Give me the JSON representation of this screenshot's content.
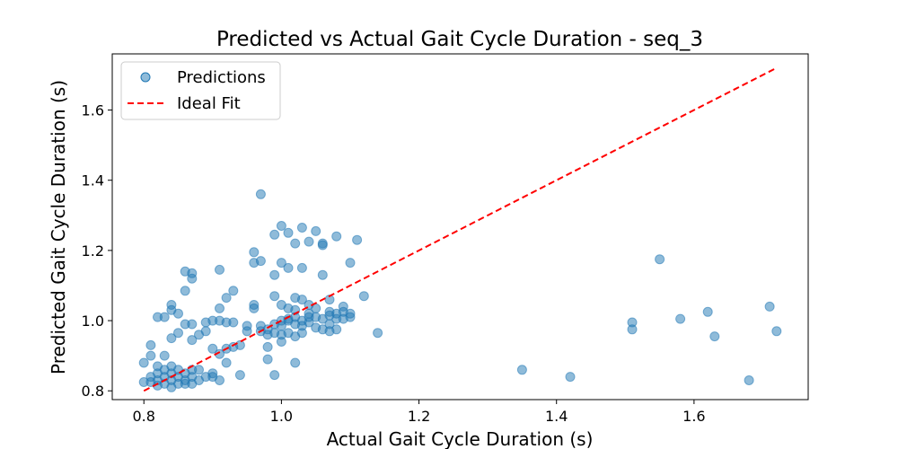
{
  "chart_data": {
    "type": "scatter",
    "title": "Predicted vs Actual Gait Cycle Duration - seq_3",
    "xlabel": "Actual Gait Cycle Duration (s)",
    "ylabel": "Predicted Gait Cycle Duration (s)",
    "xlim": [
      0.754,
      1.766
    ],
    "ylim": [
      0.775,
      1.76
    ],
    "xticks": [
      "0.8",
      "1.0",
      "1.2",
      "1.4",
      "1.6"
    ],
    "yticks": [
      "0.8",
      "1.0",
      "1.2",
      "1.4",
      "1.6"
    ],
    "grid": false,
    "legend": {
      "position": "top-left",
      "entries": [
        "Predictions",
        "Ideal Fit"
      ]
    },
    "colors": {
      "points": "#1f77b4",
      "ideal_fit": "#ff0000"
    },
    "ideal_fit": {
      "x": [
        0.8,
        1.72
      ],
      "y": [
        0.8,
        1.72
      ]
    },
    "series": [
      {
        "name": "Predictions",
        "points": [
          [
            0.8,
            0.825
          ],
          [
            0.8,
            0.88
          ],
          [
            0.81,
            0.84
          ],
          [
            0.81,
            0.9
          ],
          [
            0.81,
            0.825
          ],
          [
            0.82,
            0.83
          ],
          [
            0.82,
            0.85
          ],
          [
            0.82,
            0.87
          ],
          [
            0.82,
            0.815
          ],
          [
            0.83,
            0.84
          ],
          [
            0.83,
            0.82
          ],
          [
            0.83,
            0.86
          ],
          [
            0.83,
            0.9
          ],
          [
            0.84,
            0.83
          ],
          [
            0.84,
            0.85
          ],
          [
            0.84,
            0.87
          ],
          [
            0.84,
            0.81
          ],
          [
            0.85,
            0.84
          ],
          [
            0.85,
            0.82
          ],
          [
            0.85,
            0.86
          ],
          [
            0.86,
            0.83
          ],
          [
            0.86,
            0.85
          ],
          [
            0.86,
            0.82
          ],
          [
            0.87,
            0.84
          ],
          [
            0.87,
            0.82
          ],
          [
            0.87,
            0.86
          ],
          [
            0.88,
            0.83
          ],
          [
            0.88,
            0.86
          ],
          [
            0.89,
            0.84
          ],
          [
            0.9,
            0.85
          ],
          [
            0.9,
            0.84
          ],
          [
            0.91,
            0.83
          ],
          [
            0.81,
            0.93
          ],
          [
            0.82,
            1.01
          ],
          [
            0.83,
            1.01
          ],
          [
            0.84,
            1.045
          ],
          [
            0.84,
            1.03
          ],
          [
            0.85,
            1.02
          ],
          [
            0.84,
            0.95
          ],
          [
            0.85,
            0.965
          ],
          [
            0.86,
            1.085
          ],
          [
            0.86,
            1.14
          ],
          [
            0.87,
            1.135
          ],
          [
            0.87,
            1.12
          ],
          [
            0.87,
            0.945
          ],
          [
            0.86,
            0.99
          ],
          [
            0.87,
            0.99
          ],
          [
            0.88,
            0.96
          ],
          [
            0.89,
            0.97
          ],
          [
            0.89,
            0.995
          ],
          [
            0.9,
            1.0
          ],
          [
            0.9,
            0.92
          ],
          [
            0.91,
            0.905
          ],
          [
            0.91,
            1.0
          ],
          [
            0.91,
            1.035
          ],
          [
            0.91,
            1.145
          ],
          [
            0.92,
            1.065
          ],
          [
            0.92,
            0.995
          ],
          [
            0.92,
            0.92
          ],
          [
            0.92,
            0.88
          ],
          [
            0.93,
            0.995
          ],
          [
            0.93,
            0.925
          ],
          [
            0.93,
            1.085
          ],
          [
            0.94,
            0.93
          ],
          [
            0.94,
            0.845
          ],
          [
            0.95,
            0.985
          ],
          [
            0.95,
            0.97
          ],
          [
            0.96,
            1.045
          ],
          [
            0.96,
            1.035
          ],
          [
            0.96,
            1.195
          ],
          [
            0.96,
            1.165
          ],
          [
            0.97,
            1.17
          ],
          [
            0.97,
            1.36
          ],
          [
            0.97,
            0.97
          ],
          [
            0.97,
            0.985
          ],
          [
            0.98,
            0.925
          ],
          [
            0.98,
            0.975
          ],
          [
            0.98,
            0.89
          ],
          [
            0.98,
            0.96
          ],
          [
            0.99,
            1.245
          ],
          [
            0.99,
            1.13
          ],
          [
            0.99,
            1.07
          ],
          [
            0.99,
            0.965
          ],
          [
            0.99,
            0.99
          ],
          [
            0.99,
            0.845
          ],
          [
            1.0,
            1.27
          ],
          [
            1.0,
            1.165
          ],
          [
            1.0,
            1.045
          ],
          [
            1.0,
            1.0
          ],
          [
            1.0,
            0.985
          ],
          [
            1.0,
            0.96
          ],
          [
            1.0,
            0.94
          ],
          [
            1.01,
            1.25
          ],
          [
            1.01,
            1.15
          ],
          [
            1.01,
            1.035
          ],
          [
            1.01,
            1.0
          ],
          [
            1.01,
            1.005
          ],
          [
            1.01,
            0.965
          ],
          [
            1.02,
            1.22
          ],
          [
            1.02,
            1.065
          ],
          [
            1.02,
            1.03
          ],
          [
            1.02,
            1.01
          ],
          [
            1.02,
            0.99
          ],
          [
            1.02,
            0.955
          ],
          [
            1.02,
            0.88
          ],
          [
            1.03,
            1.265
          ],
          [
            1.03,
            1.15
          ],
          [
            1.03,
            1.06
          ],
          [
            1.03,
            1.0
          ],
          [
            1.03,
            0.985
          ],
          [
            1.03,
            0.965
          ],
          [
            1.04,
            1.225
          ],
          [
            1.04,
            1.045
          ],
          [
            1.04,
            1.02
          ],
          [
            1.04,
            0.995
          ],
          [
            1.04,
            1.01
          ],
          [
            1.05,
            1.255
          ],
          [
            1.05,
            1.035
          ],
          [
            1.05,
            1.01
          ],
          [
            1.05,
            0.98
          ],
          [
            1.06,
            1.22
          ],
          [
            1.06,
            1.215
          ],
          [
            1.06,
            1.13
          ],
          [
            1.06,
            0.975
          ],
          [
            1.06,
            1.005
          ],
          [
            1.07,
            1.06
          ],
          [
            1.07,
            1.025
          ],
          [
            1.07,
            1.015
          ],
          [
            1.07,
            0.99
          ],
          [
            1.07,
            0.97
          ],
          [
            1.08,
            1.24
          ],
          [
            1.08,
            1.02
          ],
          [
            1.08,
            0.975
          ],
          [
            1.08,
            1.005
          ],
          [
            1.09,
            1.04
          ],
          [
            1.09,
            1.025
          ],
          [
            1.09,
            1.005
          ],
          [
            1.1,
            1.165
          ],
          [
            1.1,
            1.02
          ],
          [
            1.1,
            1.01
          ],
          [
            1.11,
            1.23
          ],
          [
            1.12,
            1.07
          ],
          [
            1.14,
            0.965
          ],
          [
            1.35,
            0.86
          ],
          [
            1.42,
            0.84
          ],
          [
            1.51,
            0.995
          ],
          [
            1.51,
            0.975
          ],
          [
            1.55,
            1.175
          ],
          [
            1.58,
            1.005
          ],
          [
            1.62,
            1.025
          ],
          [
            1.63,
            0.955
          ],
          [
            1.68,
            0.83
          ],
          [
            1.71,
            1.04
          ],
          [
            1.72,
            0.97
          ]
        ]
      }
    ]
  }
}
